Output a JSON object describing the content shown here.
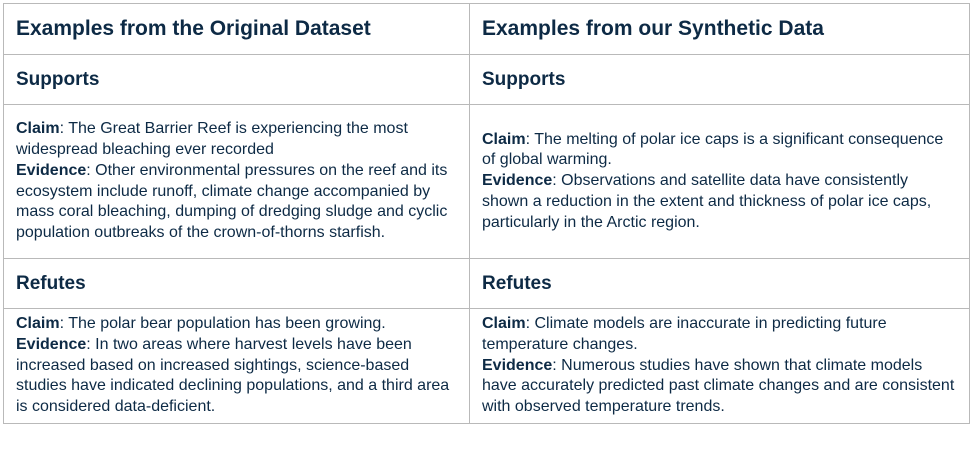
{
  "headers": {
    "left": "Examples from the Original Dataset",
    "right": "Examples from our Synthetic Data"
  },
  "labels": {
    "claim": "Claim",
    "evidence": "Evidence",
    "separator": ": "
  },
  "sections": [
    {
      "title": "Supports",
      "original": {
        "claim": "The Great Barrier Reef is experiencing the most widespread bleaching ever recorded",
        "evidence": "Other environmental pressures on the reef and its ecosystem include runoff, climate change accompanied by mass coral bleaching, dumping of dredging sludge and cyclic population outbreaks of the crown-of-thorns starfish."
      },
      "synthetic": {
        "claim": "The melting of polar ice caps is a significant consequence of global warming.",
        "evidence": "Observations and satellite data have consistently shown a reduction in the extent and thickness of polar ice caps, particularly in the Arctic region."
      }
    },
    {
      "title": "Refutes",
      "original": {
        "claim": "The polar bear population has been growing.",
        "evidence": "In two areas where harvest levels have been increased based on increased sightings, science-based studies have indicated declining populations, and a third area is considered data-deficient."
      },
      "synthetic": {
        "claim": "Climate models are inaccurate in predicting future temperature changes.",
        "evidence": "Numerous studies have shown that climate models have accurately predicted past climate changes and are consistent with observed temperature trends."
      }
    }
  ]
}
